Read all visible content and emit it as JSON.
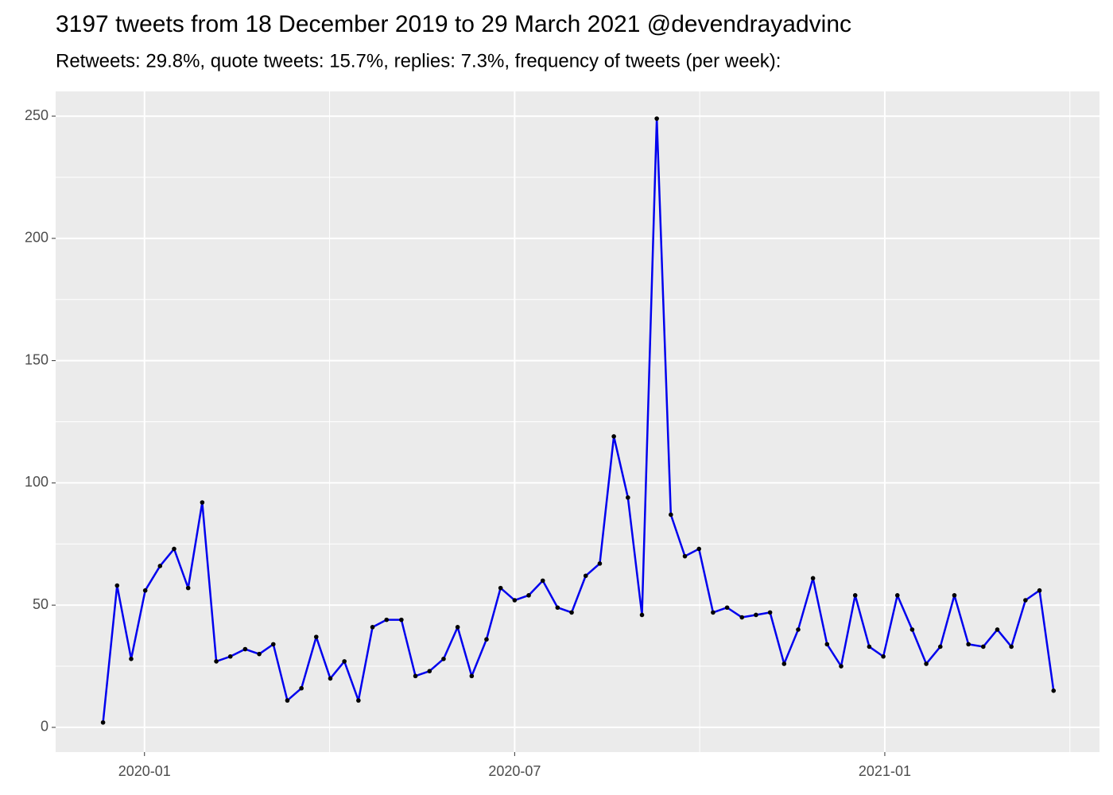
{
  "chart_data": {
    "type": "line",
    "title": "3197 tweets from 18 December 2019 to 29 March 2021 @devendrayadvinc",
    "subtitle": "Retweets: 29.8%, quote tweets: 15.7%, replies: 7.3%, frequency of tweets (per week):",
    "x": [
      2019.944,
      2019.963,
      2019.982,
      2020.001,
      2020.021,
      2020.04,
      2020.059,
      2020.078,
      2020.097,
      2020.116,
      2020.136,
      2020.155,
      2020.174,
      2020.193,
      2020.212,
      2020.232,
      2020.251,
      2020.27,
      2020.289,
      2020.308,
      2020.327,
      2020.347,
      2020.366,
      2020.385,
      2020.404,
      2020.423,
      2020.442,
      2020.462,
      2020.481,
      2020.5,
      2020.519,
      2020.538,
      2020.558,
      2020.577,
      2020.596,
      2020.615,
      2020.634,
      2020.653,
      2020.672,
      2020.692,
      2020.711,
      2020.73,
      2020.749,
      2020.768,
      2020.787,
      2020.807,
      2020.826,
      2020.845,
      2020.864,
      2020.883,
      2020.903,
      2020.922,
      2020.941,
      2020.96,
      2020.979,
      2020.998,
      2021.017,
      2021.037,
      2021.056,
      2021.075,
      2021.094,
      2021.113,
      2021.133,
      2021.152,
      2021.171,
      2021.19,
      2021.209,
      2021.228
    ],
    "series": [
      {
        "color": "#0000ee",
        "point_color": "#000000",
        "values": [
          2,
          58,
          28,
          56,
          66,
          73,
          57,
          92,
          27,
          29,
          32,
          30,
          34,
          11,
          16,
          37,
          20,
          27,
          11,
          41,
          44,
          44,
          21,
          23,
          28,
          41,
          21,
          36,
          57,
          52,
          54,
          60,
          49,
          47,
          62,
          67,
          119,
          94,
          46,
          249,
          87,
          70,
          73,
          47,
          49,
          45,
          46,
          47,
          26,
          40,
          61,
          34,
          25,
          54,
          33,
          29,
          54,
          40,
          26,
          33,
          54,
          34,
          33,
          40,
          33,
          52,
          56,
          15
        ]
      }
    ],
    "xlim": [
      2019.88,
      2021.29
    ],
    "xticks": [
      {
        "value": 2020.0,
        "label": "2020-01"
      },
      {
        "value": 2020.5,
        "label": "2020-07"
      },
      {
        "value": 2021.0,
        "label": "2021-01"
      }
    ],
    "ylim": [
      -10.1,
      260.1
    ],
    "yticks": [
      0,
      50,
      100,
      150,
      200,
      250
    ],
    "grid": true
  }
}
